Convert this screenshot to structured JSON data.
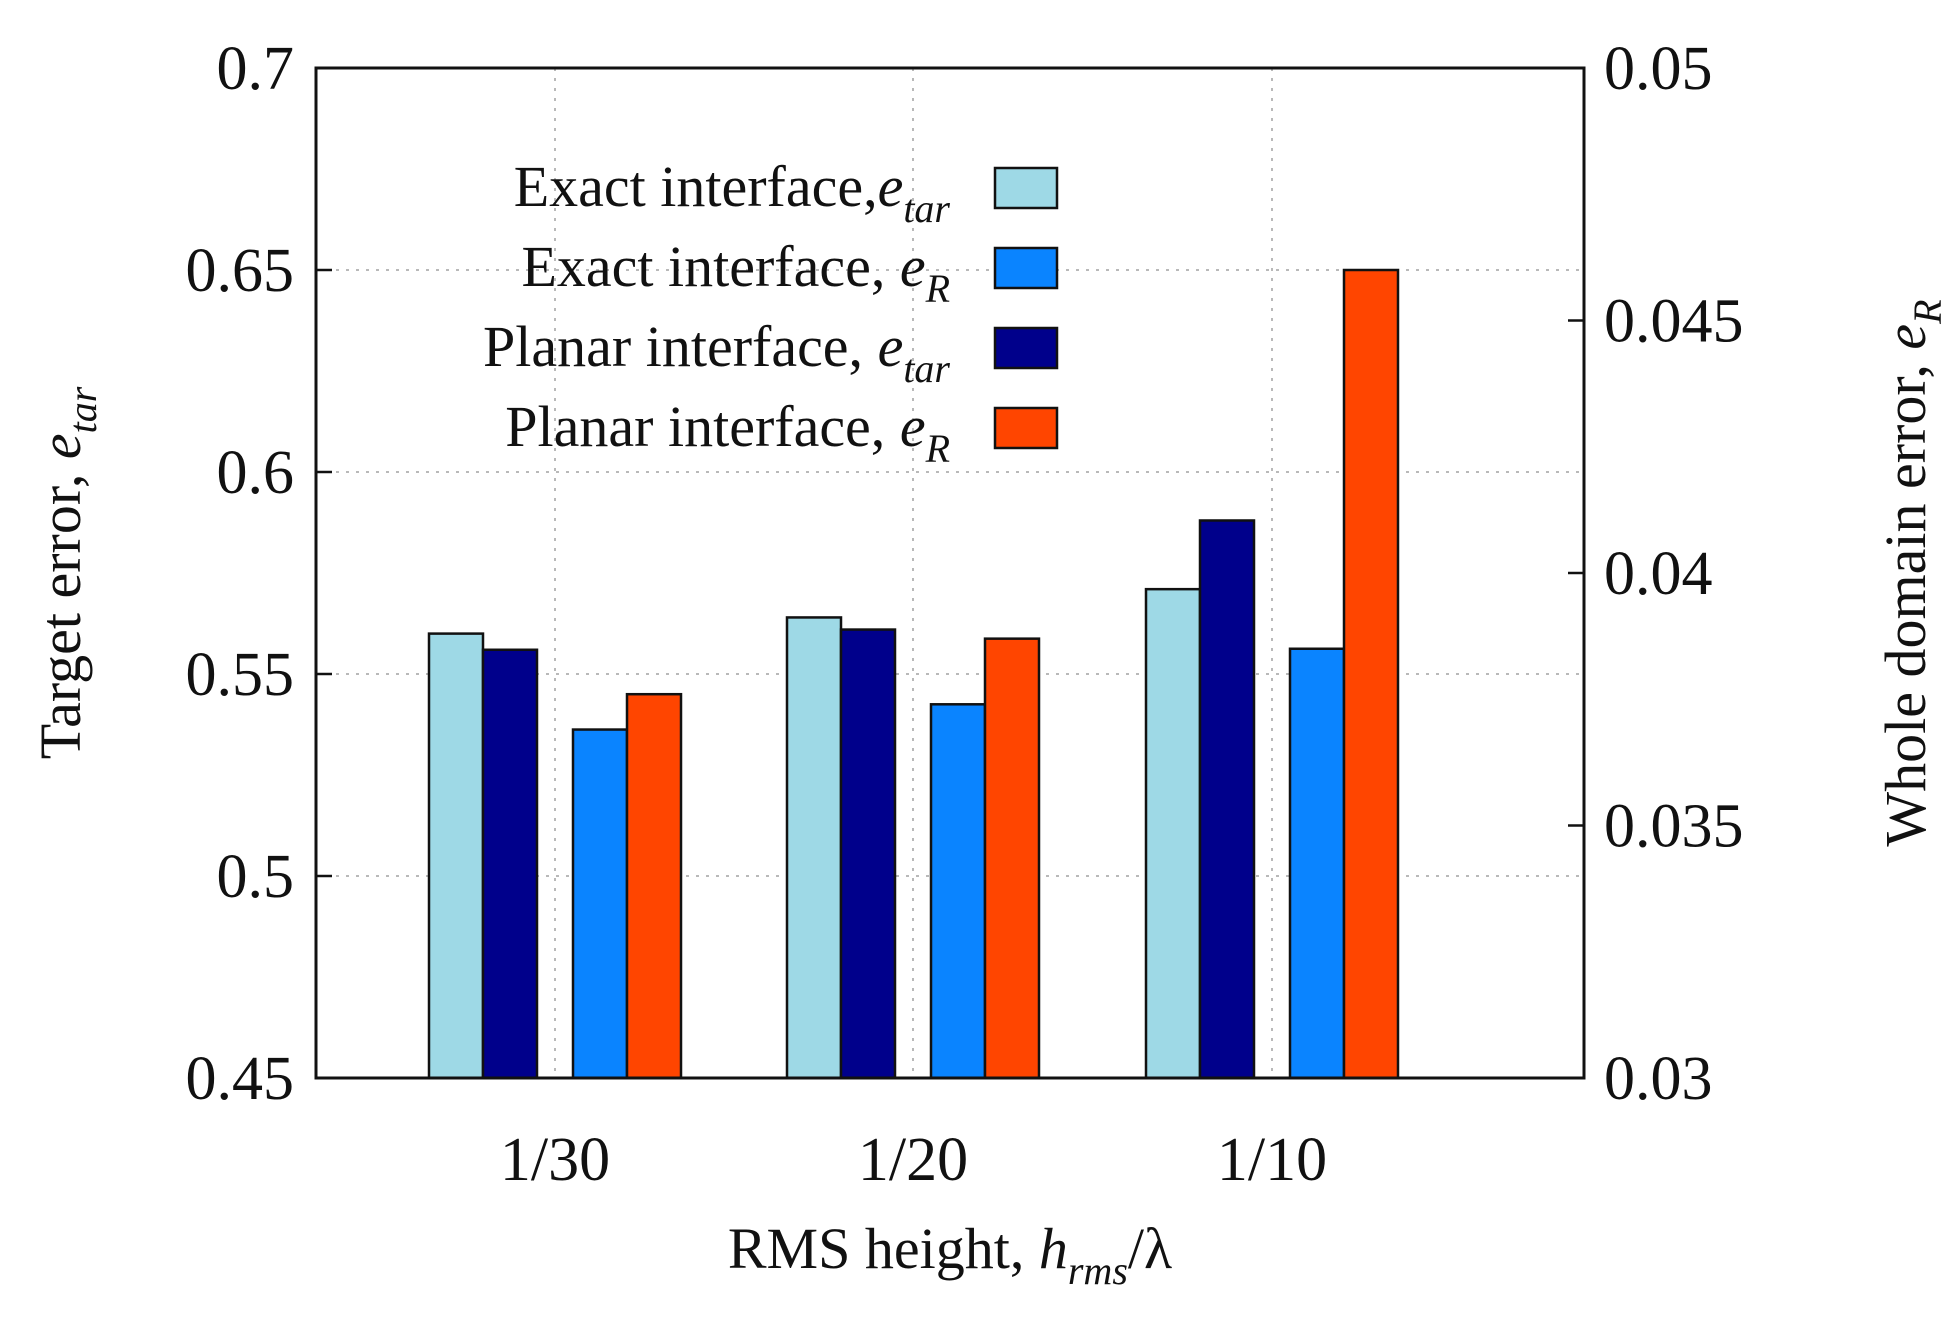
{
  "chart_data": {
    "type": "bar",
    "categories": [
      "1/30",
      "1/20",
      "1/10"
    ],
    "xlabel": {
      "main": "RMS height, ",
      "var": "h",
      "sub": "rms",
      "tail": "/λ"
    },
    "ylabel_left": {
      "main": "Target error, ",
      "var": "e",
      "sub": "tar"
    },
    "ylabel_right": {
      "main": "Whole domain error, ",
      "var": "e",
      "sub": "R"
    },
    "y_left": {
      "min": 0.45,
      "max": 0.7,
      "ticks": [
        0.45,
        0.5,
        0.55,
        0.6,
        0.65,
        0.7
      ],
      "tick_labels": [
        "0.45",
        "0.5",
        "0.55",
        "0.6",
        "0.65",
        "0.7"
      ]
    },
    "y_right": {
      "min": 0.03,
      "max": 0.05,
      "ticks": [
        0.03,
        0.035,
        0.04,
        0.045,
        0.05
      ],
      "tick_labels": [
        "0.03",
        "0.035",
        "0.04",
        "0.045",
        "0.05"
      ]
    },
    "grid": true,
    "legend_position": "top-left",
    "series": [
      {
        "name": "Exact interface,",
        "var": "e",
        "sub": "tar",
        "axis": "left",
        "color": "#9ed9e6",
        "values": [
          0.56,
          0.564,
          0.571
        ]
      },
      {
        "name": "Planar interface, ",
        "var": "e",
        "sub": "tar",
        "axis": "left",
        "color": "#00008b",
        "values": [
          0.556,
          0.561,
          0.588
        ]
      },
      {
        "name": "Exact interface, ",
        "var": "e",
        "sub": "R",
        "axis": "right",
        "color": "#0a84ff",
        "values": [
          0.0369,
          0.0374,
          0.0385
        ]
      },
      {
        "name": "Planar interface, ",
        "var": "e",
        "sub": "R",
        "axis": "right",
        "color": "#ff4500",
        "values": [
          0.0376,
          0.0387,
          0.046
        ]
      }
    ],
    "legend_order": [
      0,
      2,
      1,
      3
    ]
  }
}
